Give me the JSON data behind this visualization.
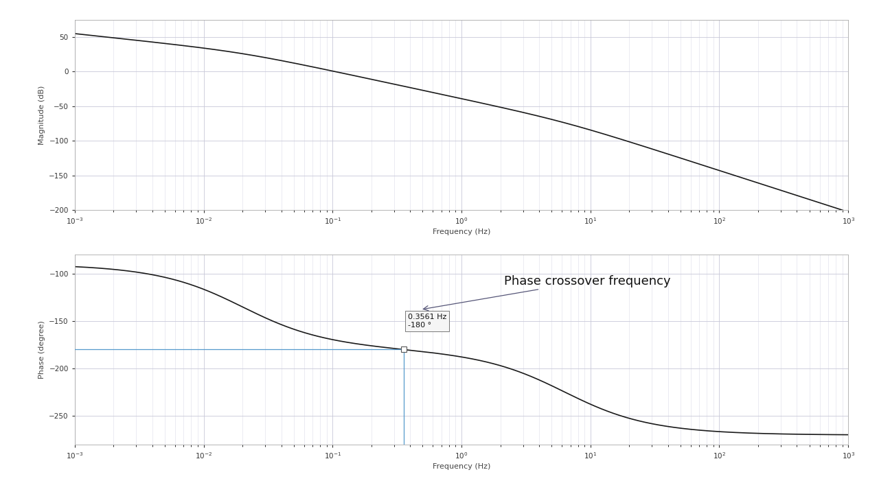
{
  "freq_min": 0.001,
  "freq_max": 1000.0,
  "mag_ylim": [
    -200,
    75
  ],
  "mag_yticks": [
    -200,
    -150,
    -100,
    -50,
    0,
    50
  ],
  "phase_ylim": [
    -280,
    -80
  ],
  "phase_yticks": [
    -250,
    -200,
    -150,
    -100
  ],
  "xlabel": "Frequency (Hz)",
  "mag_ylabel": "Magnitude (dB)",
  "phase_ylabel": "Phase (degree)",
  "crossover_freq": 0.3561,
  "crossover_phase": -180,
  "annotation_text": "Phase crossover frequency",
  "tooltip_line1": "0.3561 Hz",
  "tooltip_line2": "-180 °",
  "line_color": "#1a1a1a",
  "grid_major_color": "#c8c8d8",
  "grid_minor_color": "#dcdce8",
  "crossover_line_color": "#5599cc",
  "tooltip_box_color": "#f5f5f5",
  "background_color": "#ffffff",
  "page_background": "#f8f8f8",
  "annotation_fontsize": 13,
  "tooltip_fontsize": 8
}
